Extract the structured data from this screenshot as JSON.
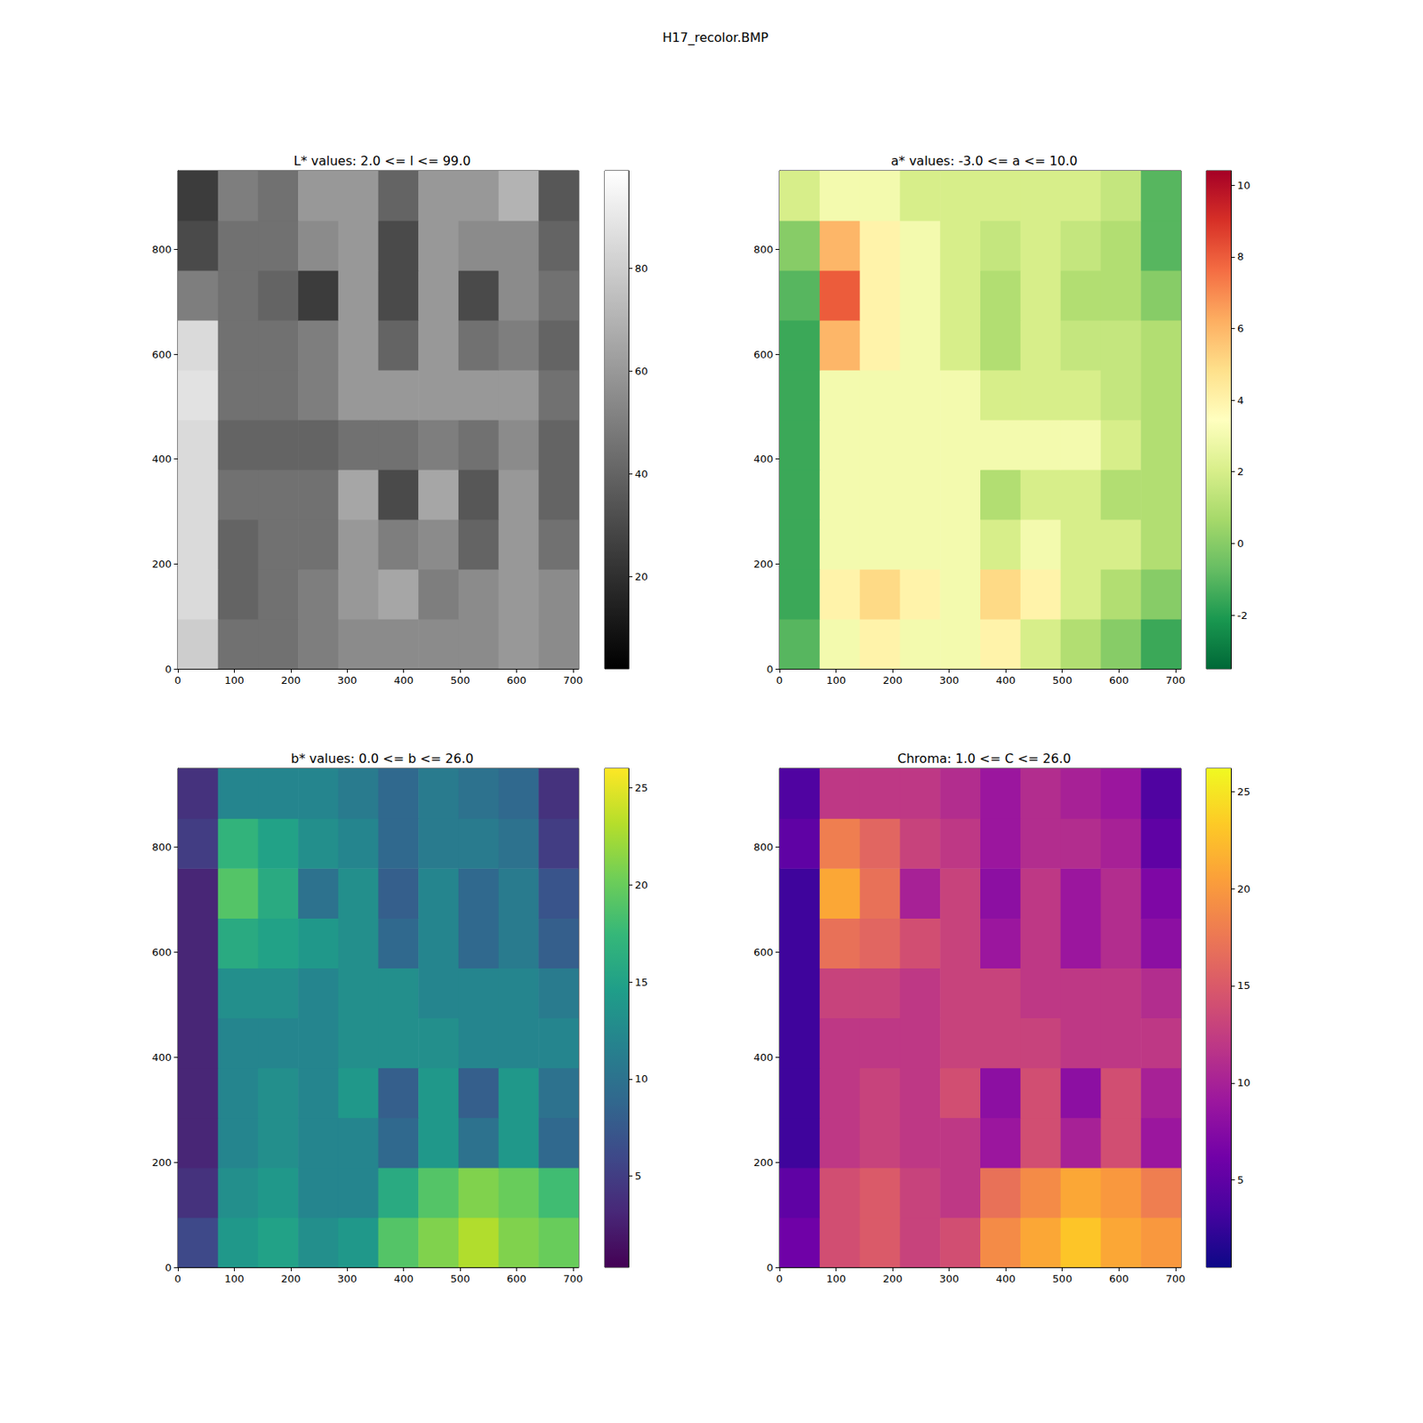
{
  "title": "H17_recolor.BMP",
  "chart_data": [
    {
      "type": "heatmap",
      "title": "L* values: 2.0 <= l <= 99.0",
      "color": "gray",
      "xlim": [
        0,
        710
      ],
      "ylim": [
        0,
        950
      ],
      "xticks": [
        0,
        100,
        200,
        300,
        400,
        500,
        600,
        700
      ],
      "yticks": [
        0,
        200,
        400,
        600,
        800
      ],
      "x_bins": [
        0,
        71,
        142,
        213,
        284,
        355,
        426,
        497,
        568,
        639,
        710
      ],
      "y_bins": [
        0,
        95,
        190,
        285,
        380,
        475,
        570,
        665,
        760,
        855,
        950
      ],
      "cells": [
        [
          80,
          45,
          45,
          50,
          55,
          55,
          55,
          55,
          60,
          55
        ],
        [
          85,
          40,
          45,
          50,
          60,
          65,
          50,
          55,
          60,
          55
        ],
        [
          85,
          40,
          45,
          45,
          60,
          50,
          55,
          40,
          60,
          45
        ],
        [
          85,
          45,
          45,
          45,
          65,
          30,
          65,
          35,
          60,
          40
        ],
        [
          85,
          40,
          40,
          40,
          45,
          45,
          50,
          45,
          55,
          40
        ],
        [
          88,
          45,
          45,
          50,
          60,
          60,
          60,
          60,
          60,
          45
        ],
        [
          85,
          45,
          45,
          50,
          60,
          40,
          60,
          45,
          50,
          40
        ],
        [
          50,
          45,
          40,
          25,
          60,
          30,
          60,
          30,
          55,
          45
        ],
        [
          30,
          45,
          45,
          55,
          60,
          30,
          60,
          55,
          55,
          40
        ],
        [
          25,
          50,
          45,
          60,
          60,
          40,
          60,
          60,
          70,
          35
        ]
      ],
      "colorbar_range": [
        2,
        99
      ],
      "colorbar_ticks": [
        20,
        40,
        60,
        80
      ]
    },
    {
      "type": "heatmap",
      "title": "a* values: -3.0 <= a <= 10.0",
      "color": "RdYlGn_r",
      "xlim": [
        0,
        710
      ],
      "ylim": [
        0,
        950
      ],
      "xticks": [
        0,
        100,
        200,
        300,
        400,
        500,
        600,
        700
      ],
      "yticks": [
        0,
        200,
        400,
        600,
        800
      ],
      "x_bins": [
        0,
        71,
        142,
        213,
        284,
        355,
        426,
        497,
        568,
        639,
        710
      ],
      "y_bins": [
        0,
        95,
        190,
        285,
        380,
        475,
        570,
        665,
        760,
        855,
        950
      ],
      "cells": [
        [
          -1,
          3,
          4,
          3,
          3,
          4,
          2,
          1,
          0,
          -1.5
        ],
        [
          -1.5,
          4,
          5,
          4,
          3,
          5,
          4,
          2,
          1,
          0
        ],
        [
          -1.5,
          3,
          3,
          3,
          3,
          2,
          3,
          2,
          2,
          1
        ],
        [
          -1.5,
          3,
          3,
          3,
          3,
          1,
          2,
          2,
          1,
          1
        ],
        [
          -1.5,
          3,
          3,
          3,
          3,
          3,
          3,
          3,
          2,
          1
        ],
        [
          -1.5,
          3,
          3,
          3,
          3,
          2,
          2,
          2,
          1.5,
          1
        ],
        [
          -1.5,
          6,
          4,
          3,
          2,
          1,
          2,
          1.5,
          1.5,
          1
        ],
        [
          -1,
          8,
          4,
          3,
          2,
          1,
          2,
          1,
          1,
          0
        ],
        [
          0,
          6,
          4,
          3,
          2,
          1.5,
          2,
          1.5,
          1,
          -1
        ],
        [
          2,
          3,
          3,
          2,
          2,
          2,
          2,
          2,
          1.5,
          -1
        ]
      ],
      "colorbar_range": [
        -3.5,
        10.4
      ],
      "colorbar_ticks": [
        -2,
        0,
        2,
        4,
        6,
        8,
        10
      ]
    },
    {
      "type": "heatmap",
      "title": "b* values: 0.0 <= b <= 26.0",
      "color": "viridis",
      "xlim": [
        0,
        710
      ],
      "ylim": [
        0,
        950
      ],
      "xticks": [
        0,
        100,
        200,
        300,
        400,
        500,
        600,
        700
      ],
      "yticks": [
        0,
        200,
        400,
        600,
        800
      ],
      "x_bins": [
        0,
        71,
        142,
        213,
        284,
        355,
        426,
        497,
        568,
        639,
        710
      ],
      "y_bins": [
        0,
        95,
        190,
        285,
        380,
        475,
        570,
        665,
        760,
        855,
        950
      ],
      "cells": [
        [
          6,
          14,
          15,
          13,
          14,
          19,
          21,
          23,
          21,
          20
        ],
        [
          4,
          13,
          14,
          12,
          12,
          16,
          19,
          21,
          20,
          18
        ],
        [
          3,
          12,
          13,
          12,
          12,
          9,
          14,
          10,
          14,
          9
        ],
        [
          3,
          12,
          13,
          12,
          14,
          8,
          14,
          8,
          14,
          10
        ],
        [
          3,
          12,
          12,
          12,
          13,
          13,
          13,
          12,
          12,
          12
        ],
        [
          3,
          13,
          13,
          12,
          13,
          13,
          12,
          12,
          12,
          11
        ],
        [
          3,
          16,
          15,
          14,
          13,
          9,
          12,
          9,
          11,
          8
        ],
        [
          3,
          19,
          16,
          10,
          13,
          8,
          12,
          9,
          11,
          7
        ],
        [
          5,
          17,
          15,
          13,
          12,
          9,
          11,
          11,
          10,
          5
        ],
        [
          4,
          12,
          12,
          12,
          11,
          9,
          11,
          10,
          9,
          4
        ]
      ],
      "colorbar_range": [
        0.3,
        26
      ],
      "colorbar_ticks": [
        5,
        10,
        15,
        20,
        25
      ]
    },
    {
      "type": "heatmap",
      "title": "Chroma: 1.0 <= C <= 26.0",
      "color": "plasma",
      "xlim": [
        0,
        710
      ],
      "ylim": [
        0,
        950
      ],
      "xticks": [
        0,
        100,
        200,
        300,
        400,
        500,
        600,
        700
      ],
      "yticks": [
        0,
        200,
        400,
        600,
        800
      ],
      "x_bins": [
        0,
        71,
        142,
        213,
        284,
        355,
        426,
        497,
        568,
        639,
        710
      ],
      "y_bins": [
        0,
        95,
        190,
        285,
        380,
        475,
        570,
        665,
        760,
        855,
        950
      ],
      "cells": [
        [
          6,
          14,
          15,
          13,
          14,
          19,
          21,
          23,
          21,
          20
        ],
        [
          5,
          14,
          15,
          13,
          12,
          17,
          19,
          21,
          20,
          18
        ],
        [
          3,
          12,
          13,
          12,
          12,
          9,
          14,
          10,
          14,
          9
        ],
        [
          3,
          12,
          13,
          12,
          14,
          8,
          14,
          8,
          14,
          10
        ],
        [
          3,
          12,
          12,
          12,
          13,
          13,
          13,
          12,
          12,
          12
        ],
        [
          3,
          13,
          13,
          12,
          13,
          13,
          12,
          12,
          12,
          11
        ],
        [
          3,
          17,
          16,
          14,
          13,
          9,
          12,
          9,
          11,
          8
        ],
        [
          3,
          21,
          17,
          10,
          13,
          8,
          12,
          9,
          11,
          7
        ],
        [
          5,
          18,
          16,
          13,
          12,
          9,
          11,
          11,
          10,
          5
        ],
        [
          4,
          12,
          12,
          12,
          11,
          9,
          11,
          10,
          9,
          4
        ]
      ],
      "colorbar_range": [
        0.5,
        26.2
      ],
      "colorbar_ticks": [
        5,
        10,
        15,
        20,
        25
      ]
    }
  ]
}
